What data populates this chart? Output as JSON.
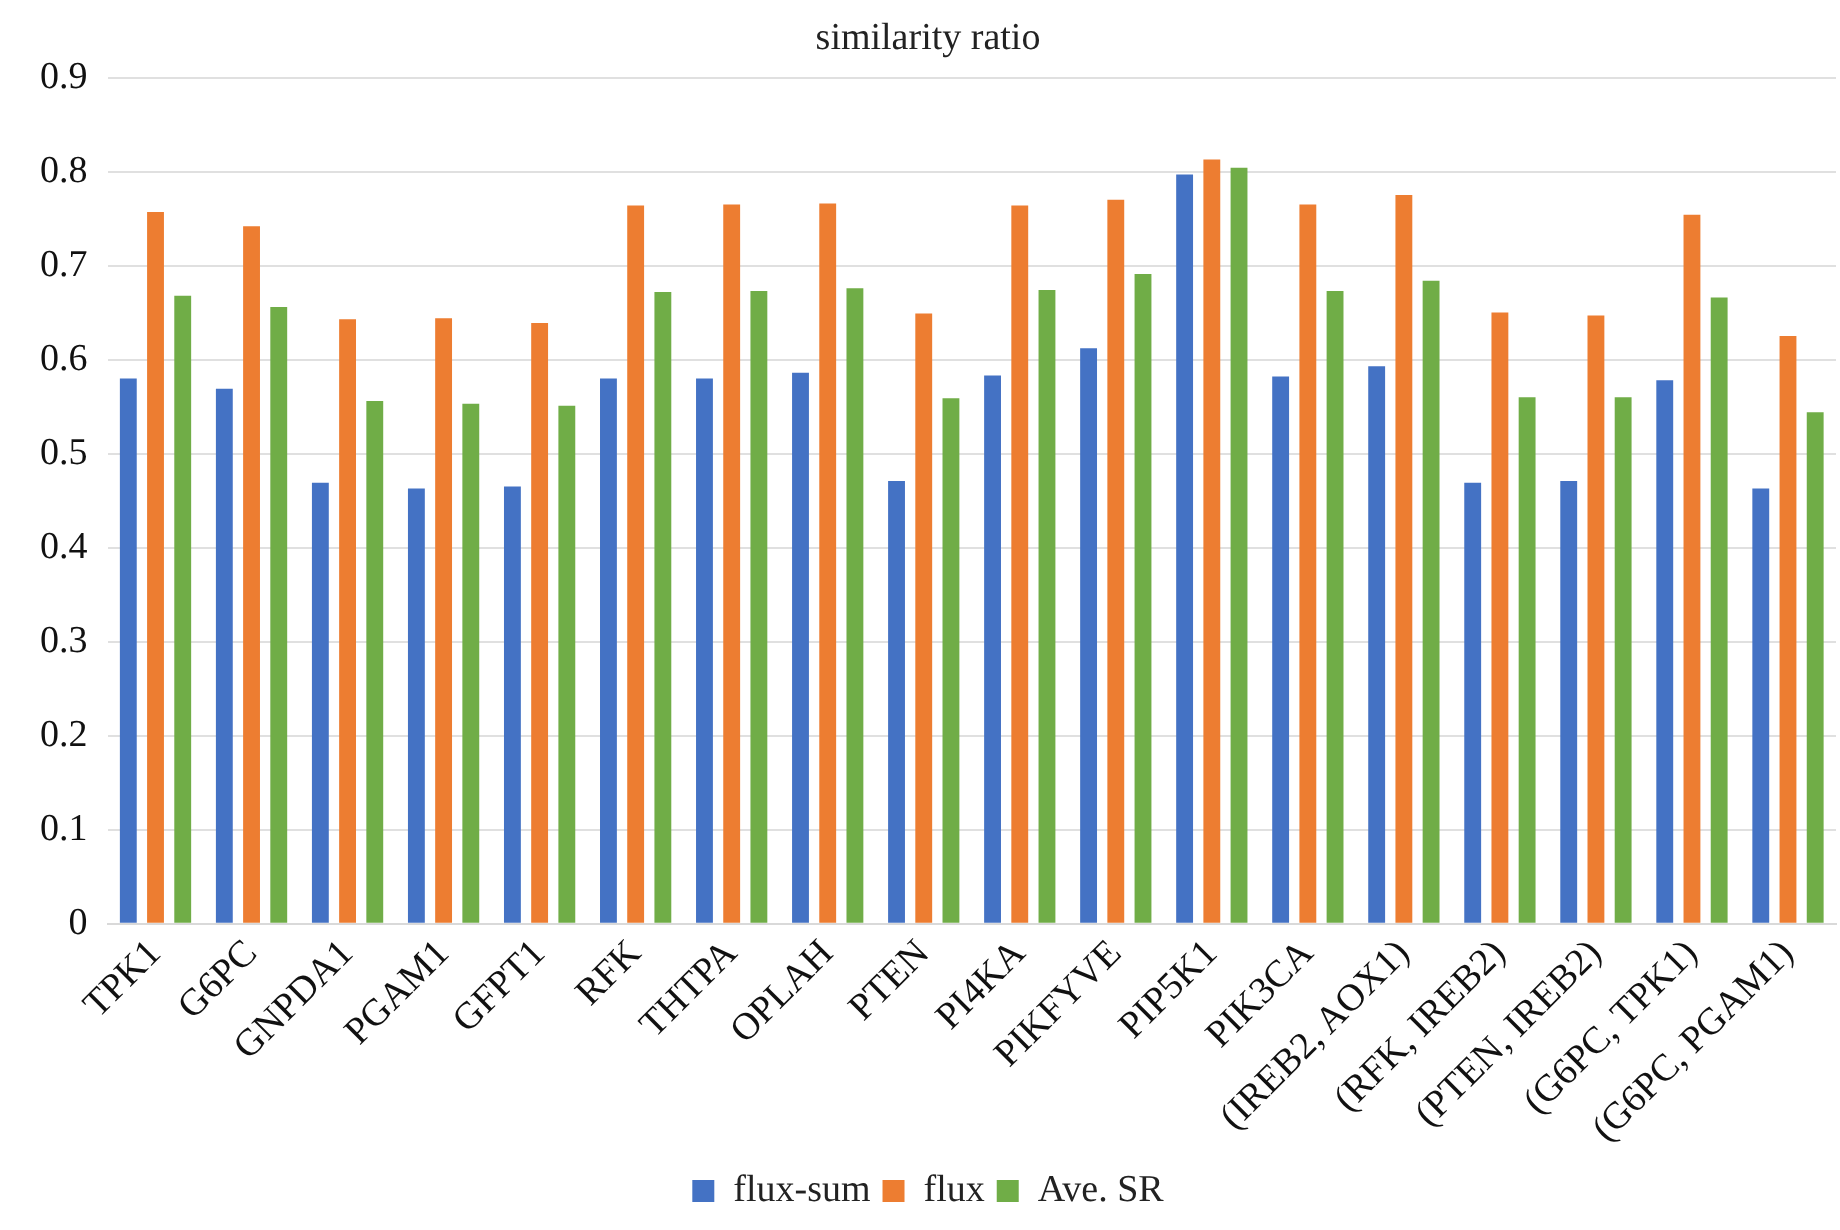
{
  "chart_data": {
    "type": "bar",
    "title": "similarity ratio",
    "categories": [
      "TPK1",
      "G6PC",
      "GNPDA1",
      "PGAM1",
      "GFPT1",
      "RFK",
      "THTPA",
      "OPLAH",
      "PTEN",
      "PI4KA",
      "PIKFYVE",
      "PIP5K1",
      "PIK3CA",
      "(IREB2, AOX1)",
      "(RFK, IREB2)",
      "(PTEN, IREB2)",
      "(G6PC, TPK1)",
      "(G6PC, PGAM1)"
    ],
    "series": [
      {
        "name": "flux-sum",
        "color": "#4472c4",
        "values": [
          0.58,
          0.569,
          0.469,
          0.463,
          0.465,
          0.58,
          0.58,
          0.586,
          0.471,
          0.583,
          0.612,
          0.797,
          0.582,
          0.593,
          0.469,
          0.471,
          0.578,
          0.463
        ]
      },
      {
        "name": "flux",
        "color": "#ed7d31",
        "values": [
          0.757,
          0.742,
          0.643,
          0.644,
          0.639,
          0.764,
          0.765,
          0.766,
          0.649,
          0.764,
          0.77,
          0.813,
          0.765,
          0.775,
          0.65,
          0.647,
          0.754,
          0.625
        ]
      },
      {
        "name": "Ave. SR",
        "color": "#70ad47",
        "values": [
          0.668,
          0.656,
          0.556,
          0.553,
          0.551,
          0.672,
          0.673,
          0.676,
          0.559,
          0.674,
          0.691,
          0.804,
          0.673,
          0.684,
          0.56,
          0.56,
          0.666,
          0.544
        ]
      }
    ],
    "ylim": [
      0,
      0.9
    ],
    "yticks": [
      0,
      0.1,
      0.2,
      0.3,
      0.4,
      0.5,
      0.6,
      0.7,
      0.8,
      0.9
    ],
    "grid": "y",
    "legend": "bottom"
  }
}
